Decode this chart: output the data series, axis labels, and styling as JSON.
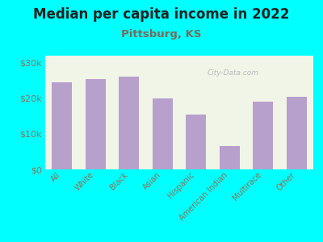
{
  "title": "Median per capita income in 2022",
  "subtitle": "Pittsburg, KS",
  "categories": [
    "All",
    "White",
    "Black",
    "Asian",
    "Hispanic",
    "American Indian",
    "Multirace",
    "Other"
  ],
  "values": [
    24500,
    25500,
    26000,
    20000,
    15500,
    6500,
    19000,
    20500
  ],
  "bar_color": "#b8a0cc",
  "background_outer": "#00ffff",
  "background_inner": "#f0f5e8",
  "title_color": "#222222",
  "subtitle_color": "#7a6a5a",
  "tick_color": "#8b7355",
  "ylim": [
    0,
    32000
  ],
  "yticks": [
    0,
    10000,
    20000,
    30000
  ],
  "ytick_labels": [
    "$0",
    "$10k",
    "$20k",
    "$30k"
  ],
  "watermark": "City-Data.com",
  "title_fontsize": 12,
  "subtitle_fontsize": 9.5
}
